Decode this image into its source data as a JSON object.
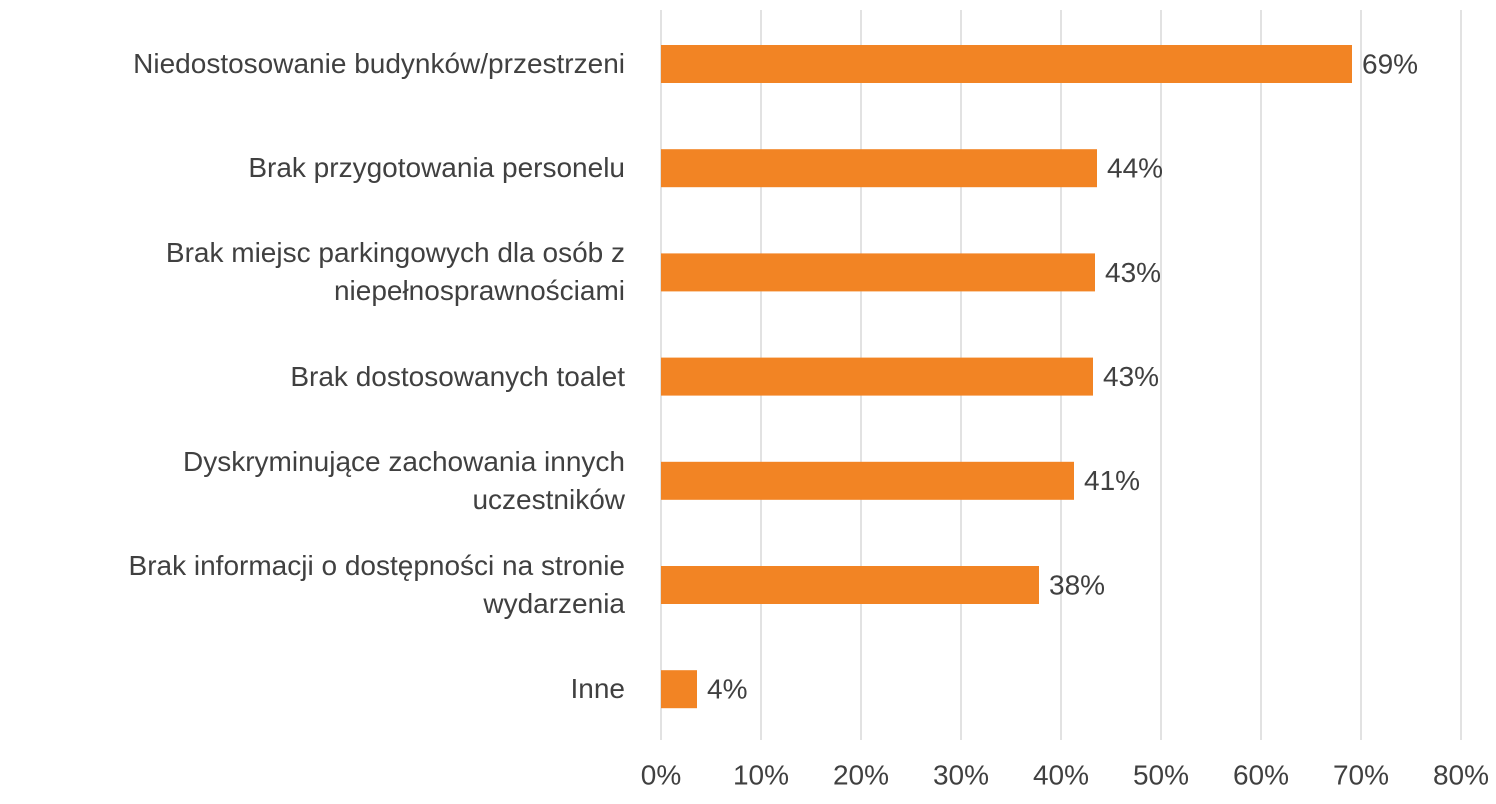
{
  "chart_data": {
    "type": "hbar",
    "categories": [
      "Niedostosowanie budynków/przestrzeni",
      "Brak przygotowania personelu",
      "Brak miejsc parkingowych dla osób z\nniepełnosprawnościami",
      "Brak dostosowanych toalet",
      "Dyskryminujące zachowania innych\nuczestników",
      "Brak informacji o dostępności na stronie\nwydarzenia",
      "Inne"
    ],
    "values": [
      69.1,
      43.6,
      43.4,
      43.2,
      41.3,
      37.8,
      3.6
    ],
    "value_labels": [
      "69%",
      "44%",
      "43%",
      "43%",
      "41%",
      "38%",
      "4%"
    ],
    "color": "#f28424",
    "xlim": [
      0,
      80
    ],
    "xticks": [
      {
        "value": 0,
        "label": "0%"
      },
      {
        "value": 10,
        "label": "10%"
      },
      {
        "value": 20,
        "label": "20%"
      },
      {
        "value": 30,
        "label": "30%"
      },
      {
        "value": 40,
        "label": "40%"
      },
      {
        "value": 50,
        "label": "50%"
      },
      {
        "value": 60,
        "label": "60%"
      },
      {
        "value": 70,
        "label": "70%"
      },
      {
        "value": 80,
        "label": "80%"
      }
    ],
    "grid": true
  }
}
